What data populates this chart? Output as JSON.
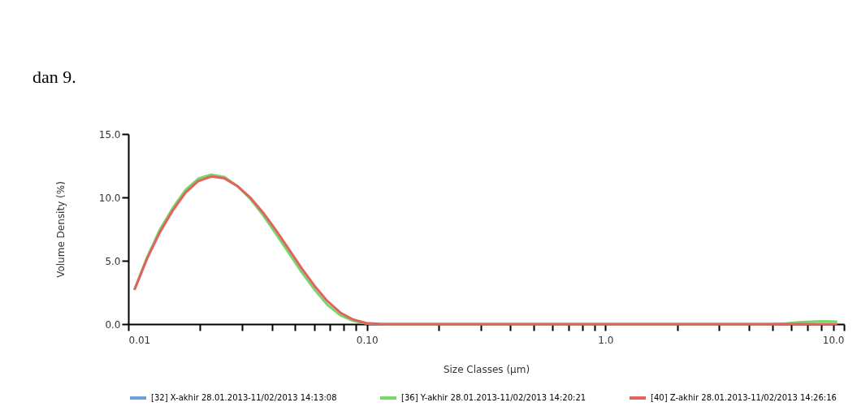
{
  "chart_data": {
    "type": "line",
    "xlabel": "Size Classes (µm)",
    "ylabel": "Volume Density (%)",
    "annotations": [
      "dan 9."
    ],
    "log": "x",
    "grid": false,
    "legend": "bottom",
    "marker": "none",
    "line_style": "solid",
    "x": [
      0.0106,
      0.012,
      0.0136,
      0.0154,
      0.0174,
      0.0197,
      0.0223,
      0.0253,
      0.0286,
      0.0324,
      0.0367,
      0.0416,
      0.0471,
      0.0533,
      0.0604,
      0.0684,
      0.0774,
      0.0877,
      0.0993,
      0.112,
      0.127,
      0.2,
      0.5,
      1.0,
      2.0,
      5.0,
      5.69,
      6.45,
      7.3,
      8.27,
      9.37
    ],
    "series": [
      {
        "name": "[32] X-akhir 28.01.2013-11/02/2013 14:13:08",
        "color": "#6f9fd8",
        "values": [
          null,
          null,
          null,
          null,
          null,
          null,
          null,
          null,
          null,
          null,
          null,
          null,
          null,
          null,
          null,
          null,
          null,
          null,
          null,
          null,
          null,
          null,
          null,
          null,
          null,
          null,
          null,
          null,
          null,
          null,
          null
        ]
      },
      {
        "name": "[36] Y-akhir 28.01.2013-11/02/2013 14:20:21",
        "color": "#78d66a",
        "values": [
          2.7,
          5.3,
          7.5,
          9.2,
          10.6,
          11.5,
          11.8,
          11.6,
          10.9,
          9.9,
          8.6,
          7.1,
          5.6,
          4.1,
          2.7,
          1.5,
          0.7,
          0.25,
          0.05,
          0.01,
          0,
          0,
          0,
          0,
          0,
          0,
          0.05,
          0.15,
          0.2,
          0.22,
          0.2
        ]
      },
      {
        "name": "[40] Z-akhir 28.01.2013-11/02/2013 14:26:16",
        "color": "#e0635f",
        "values": [
          2.7,
          5.2,
          7.3,
          9.0,
          10.4,
          11.3,
          11.65,
          11.5,
          10.9,
          10.0,
          8.8,
          7.4,
          5.9,
          4.4,
          3.0,
          1.8,
          0.9,
          0.35,
          0.08,
          0.01,
          0,
          0,
          0,
          0,
          0,
          0,
          0,
          0,
          0,
          0,
          0
        ]
      }
    ],
    "xlim": [
      0.01,
      10
    ],
    "xticks": [
      {
        "value": 0.01,
        "label": "0.01"
      },
      {
        "value": 0.02,
        "label": null
      },
      {
        "value": 0.03,
        "label": null
      },
      {
        "value": 0.04,
        "label": null
      },
      {
        "value": 0.05,
        "label": null
      },
      {
        "value": 0.06,
        "label": null
      },
      {
        "value": 0.07,
        "label": null
      },
      {
        "value": 0.08,
        "label": null
      },
      {
        "value": 0.09,
        "label": null
      },
      {
        "value": 0.1,
        "label": "0.10"
      },
      {
        "value": 0.2,
        "label": null
      },
      {
        "value": 0.3,
        "label": null
      },
      {
        "value": 0.4,
        "label": null
      },
      {
        "value": 0.5,
        "label": null
      },
      {
        "value": 0.6,
        "label": null
      },
      {
        "value": 0.7,
        "label": null
      },
      {
        "value": 0.8,
        "label": null
      },
      {
        "value": 0.9,
        "label": null
      },
      {
        "value": 1,
        "label": "1.0"
      },
      {
        "value": 2,
        "label": null
      },
      {
        "value": 3,
        "label": null
      },
      {
        "value": 4,
        "label": null
      },
      {
        "value": 5,
        "label": null
      },
      {
        "value": 6,
        "label": null
      },
      {
        "value": 7,
        "label": null
      },
      {
        "value": 8,
        "label": null
      },
      {
        "value": 9,
        "label": null
      },
      {
        "value": 10,
        "label": "10.0"
      }
    ],
    "ylim": [
      0,
      15
    ],
    "yticks": [
      {
        "value": 0,
        "label": "0.0"
      },
      {
        "value": 5,
        "label": "5.0"
      },
      {
        "value": 10,
        "label": "10.0"
      },
      {
        "value": 15,
        "label": "15.0"
      }
    ]
  }
}
